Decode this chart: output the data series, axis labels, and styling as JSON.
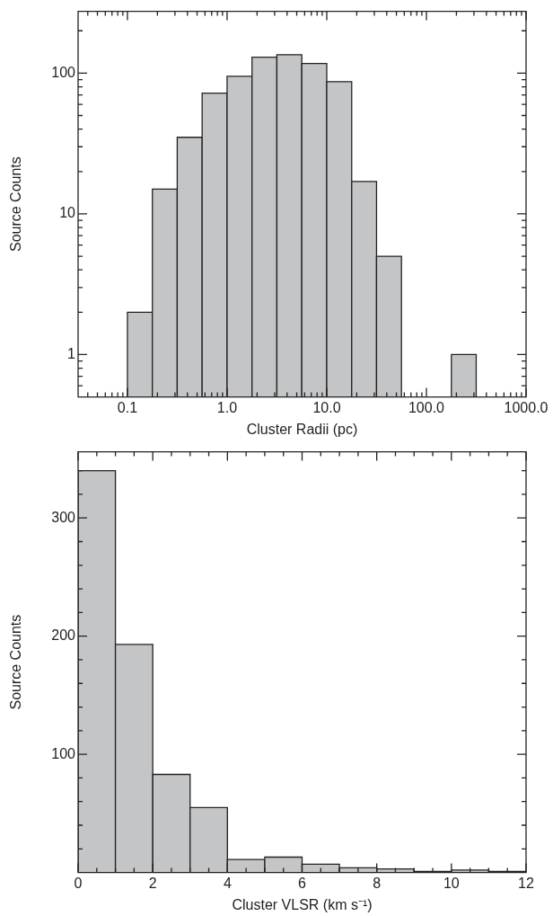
{
  "chart_data": [
    {
      "type": "histogram",
      "xlabel": "Cluster Radii (pc)",
      "ylabel": "Source Counts",
      "log": "xy",
      "color": "#c4c5c7",
      "bins": [
        0.1,
        0.178,
        0.316,
        0.562,
        1.0,
        1.78,
        3.16,
        5.62,
        10,
        17.8,
        31.6,
        56.2,
        100,
        178,
        316
      ],
      "values": [
        2,
        15,
        35,
        72,
        95,
        130,
        135,
        117,
        87,
        17,
        5,
        null,
        null,
        1
      ],
      "xlim": [
        0.032,
        1000
      ],
      "ylim": [
        0.5,
        275
      ],
      "xticks": [
        {
          "value": 0.04,
          "label": null
        },
        {
          "value": 0.05,
          "label": null
        },
        {
          "value": 0.06,
          "label": null
        },
        {
          "value": 0.07,
          "label": null
        },
        {
          "value": 0.08,
          "label": null
        },
        {
          "value": 0.09,
          "label": null
        },
        {
          "value": 0.1,
          "label": "0.1"
        },
        {
          "value": 0.2,
          "label": null
        },
        {
          "value": 0.3,
          "label": null
        },
        {
          "value": 0.4,
          "label": null
        },
        {
          "value": 0.5,
          "label": null
        },
        {
          "value": 0.6,
          "label": null
        },
        {
          "value": 0.7,
          "label": null
        },
        {
          "value": 0.8,
          "label": null
        },
        {
          "value": 0.9,
          "label": null
        },
        {
          "value": 1,
          "label": "1.0"
        },
        {
          "value": 2,
          "label": null
        },
        {
          "value": 3,
          "label": null
        },
        {
          "value": 4,
          "label": null
        },
        {
          "value": 5,
          "label": null
        },
        {
          "value": 6,
          "label": null
        },
        {
          "value": 7,
          "label": null
        },
        {
          "value": 8,
          "label": null
        },
        {
          "value": 9,
          "label": null
        },
        {
          "value": 10,
          "label": "10.0"
        },
        {
          "value": 20,
          "label": null
        },
        {
          "value": 30,
          "label": null
        },
        {
          "value": 40,
          "label": null
        },
        {
          "value": 50,
          "label": null
        },
        {
          "value": 60,
          "label": null
        },
        {
          "value": 70,
          "label": null
        },
        {
          "value": 80,
          "label": null
        },
        {
          "value": 90,
          "label": null
        },
        {
          "value": 100,
          "label": "100.0"
        },
        {
          "value": 200,
          "label": null
        },
        {
          "value": 300,
          "label": null
        },
        {
          "value": 400,
          "label": null
        },
        {
          "value": 500,
          "label": null
        },
        {
          "value": 600,
          "label": null
        },
        {
          "value": 700,
          "label": null
        },
        {
          "value": 800,
          "label": null
        },
        {
          "value": 900,
          "label": null
        },
        {
          "value": 1000,
          "label": "1000.0"
        }
      ],
      "yticks": [
        {
          "value": 0.6,
          "label": null
        },
        {
          "value": 0.7,
          "label": null
        },
        {
          "value": 0.8,
          "label": null
        },
        {
          "value": 0.9,
          "label": null
        },
        1,
        {
          "value": 2,
          "label": null
        },
        {
          "value": 3,
          "label": null
        },
        {
          "value": 4,
          "label": null
        },
        {
          "value": 5,
          "label": null
        },
        {
          "value": 6,
          "label": null
        },
        {
          "value": 7,
          "label": null
        },
        {
          "value": 8,
          "label": null
        },
        {
          "value": 9,
          "label": null
        },
        10,
        {
          "value": 20,
          "label": null
        },
        {
          "value": 30,
          "label": null
        },
        {
          "value": 40,
          "label": null
        },
        {
          "value": 50,
          "label": null
        },
        {
          "value": 60,
          "label": null
        },
        {
          "value": 70,
          "label": null
        },
        {
          "value": 80,
          "label": null
        },
        {
          "value": 90,
          "label": null
        },
        100,
        {
          "value": 200,
          "label": null
        }
      ]
    },
    {
      "type": "histogram",
      "xlabel": "Cluster VLSR (km s⁻¹)",
      "ylabel": "Source Counts",
      "color": "#c4c5c7",
      "bins": [
        0,
        1,
        2,
        3,
        4,
        5,
        6,
        7,
        8,
        9,
        10,
        11,
        12
      ],
      "values": [
        340,
        193,
        83,
        55,
        11,
        13,
        7,
        4,
        3,
        1,
        2,
        1
      ],
      "xlim": [
        0,
        12
      ],
      "ylim": [
        0,
        356
      ],
      "xticks": [
        0,
        {
          "value": 0.5,
          "label": null
        },
        {
          "value": 1,
          "label": null
        },
        {
          "value": 1.5,
          "label": null
        },
        2,
        {
          "value": 2.5,
          "label": null
        },
        {
          "value": 3,
          "label": null
        },
        {
          "value": 3.5,
          "label": null
        },
        4,
        {
          "value": 4.5,
          "label": null
        },
        {
          "value": 5,
          "label": null
        },
        {
          "value": 5.5,
          "label": null
        },
        6,
        {
          "value": 6.5,
          "label": null
        },
        {
          "value": 7,
          "label": null
        },
        {
          "value": 7.5,
          "label": null
        },
        8,
        {
          "value": 8.5,
          "label": null
        },
        {
          "value": 9,
          "label": null
        },
        {
          "value": 9.5,
          "label": null
        },
        10,
        {
          "value": 10.5,
          "label": null
        },
        {
          "value": 11,
          "label": null
        },
        {
          "value": 11.5,
          "label": null
        },
        12
      ],
      "yticks": [
        {
          "value": 20,
          "label": null
        },
        {
          "value": 40,
          "label": null
        },
        {
          "value": 60,
          "label": null
        },
        {
          "value": 80,
          "label": null
        },
        100,
        {
          "value": 120,
          "label": null
        },
        {
          "value": 140,
          "label": null
        },
        {
          "value": 160,
          "label": null
        },
        {
          "value": 180,
          "label": null
        },
        200,
        {
          "value": 220,
          "label": null
        },
        {
          "value": 240,
          "label": null
        },
        {
          "value": 260,
          "label": null
        },
        {
          "value": 280,
          "label": null
        },
        300,
        {
          "value": 320,
          "label": null
        },
        {
          "value": 340,
          "label": null
        }
      ]
    }
  ]
}
